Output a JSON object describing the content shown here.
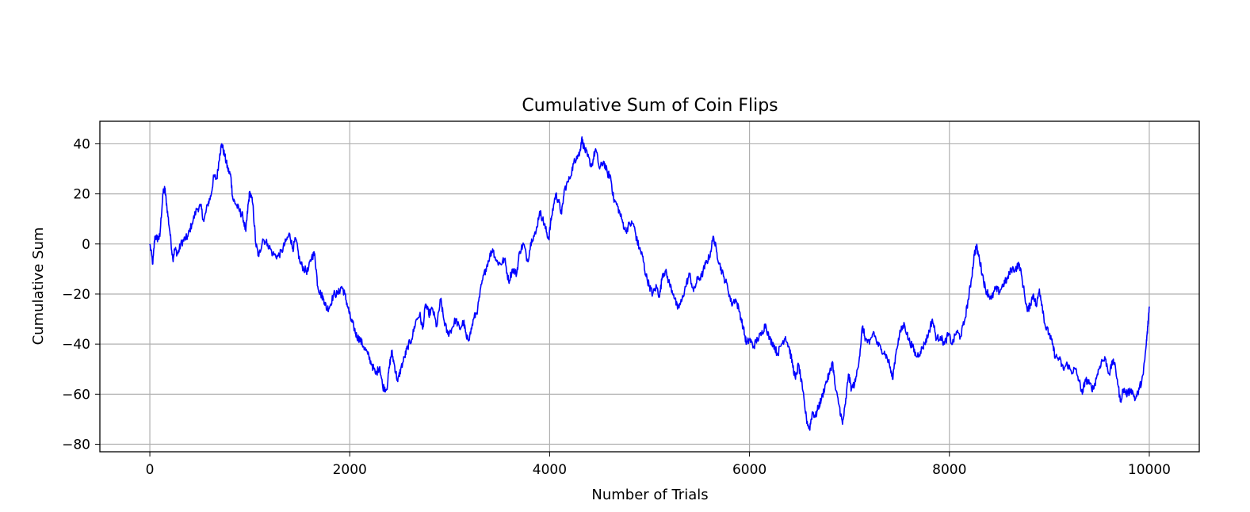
{
  "chart_data": {
    "type": "line",
    "title": "Cumulative Sum of Coin Flips",
    "xlabel": "Number of Trials",
    "ylabel": "Cumulative Sum",
    "xlim": [
      -500,
      10500
    ],
    "ylim": [
      -83,
      49
    ],
    "xticks": [
      0,
      2000,
      4000,
      6000,
      8000,
      10000
    ],
    "yticks": [
      -80,
      -60,
      -40,
      -20,
      0,
      20,
      40
    ],
    "xtick_labels": [
      "0",
      "2000",
      "4000",
      "6000",
      "8000",
      "10000"
    ],
    "ytick_labels": [
      "−80",
      "−60",
      "−40",
      "−20",
      "0",
      "20",
      "40"
    ],
    "grid": true,
    "series": [
      {
        "color": "#0000ff",
        "points": [
          [
            0,
            0
          ],
          [
            30,
            -8
          ],
          [
            50,
            3
          ],
          [
            80,
            2
          ],
          [
            100,
            3
          ],
          [
            130,
            20
          ],
          [
            150,
            22
          ],
          [
            170,
            15
          ],
          [
            200,
            5
          ],
          [
            230,
            -6
          ],
          [
            250,
            -2
          ],
          [
            280,
            -4
          ],
          [
            310,
            0
          ],
          [
            350,
            2
          ],
          [
            380,
            3
          ],
          [
            420,
            8
          ],
          [
            470,
            14
          ],
          [
            510,
            15
          ],
          [
            540,
            9
          ],
          [
            580,
            16
          ],
          [
            610,
            19
          ],
          [
            640,
            27
          ],
          [
            670,
            26
          ],
          [
            700,
            36
          ],
          [
            720,
            40
          ],
          [
            750,
            35
          ],
          [
            780,
            30
          ],
          [
            810,
            27
          ],
          [
            830,
            18
          ],
          [
            860,
            16
          ],
          [
            900,
            13
          ],
          [
            930,
            11
          ],
          [
            960,
            5
          ],
          [
            980,
            14
          ],
          [
            1000,
            21
          ],
          [
            1030,
            16
          ],
          [
            1060,
            0
          ],
          [
            1090,
            -5
          ],
          [
            1130,
            2
          ],
          [
            1180,
            0
          ],
          [
            1230,
            -4
          ],
          [
            1280,
            -5
          ],
          [
            1320,
            -3
          ],
          [
            1360,
            1
          ],
          [
            1400,
            4
          ],
          [
            1430,
            -2
          ],
          [
            1460,
            2
          ],
          [
            1500,
            -7
          ],
          [
            1540,
            -10
          ],
          [
            1580,
            -11
          ],
          [
            1620,
            -5
          ],
          [
            1650,
            -4
          ],
          [
            1680,
            -17
          ],
          [
            1710,
            -20
          ],
          [
            1740,
            -22
          ],
          [
            1770,
            -26
          ],
          [
            1800,
            -25
          ],
          [
            1840,
            -20
          ],
          [
            1880,
            -20
          ],
          [
            1920,
            -17
          ],
          [
            1950,
            -20
          ],
          [
            1980,
            -25
          ],
          [
            2010,
            -30
          ],
          [
            2040,
            -33
          ],
          [
            2070,
            -37
          ],
          [
            2100,
            -38
          ],
          [
            2140,
            -41
          ],
          [
            2180,
            -44
          ],
          [
            2220,
            -48
          ],
          [
            2260,
            -52
          ],
          [
            2300,
            -49
          ],
          [
            2330,
            -57
          ],
          [
            2370,
            -58
          ],
          [
            2400,
            -48
          ],
          [
            2420,
            -43
          ],
          [
            2450,
            -49
          ],
          [
            2480,
            -55
          ],
          [
            2510,
            -50
          ],
          [
            2550,
            -45
          ],
          [
            2580,
            -41
          ],
          [
            2620,
            -38
          ],
          [
            2660,
            -31
          ],
          [
            2700,
            -28
          ],
          [
            2730,
            -34
          ],
          [
            2760,
            -24
          ],
          [
            2790,
            -28
          ],
          [
            2830,
            -26
          ],
          [
            2870,
            -33
          ],
          [
            2910,
            -22
          ],
          [
            2940,
            -30
          ],
          [
            2980,
            -36
          ],
          [
            3020,
            -34
          ],
          [
            3060,
            -30
          ],
          [
            3100,
            -34
          ],
          [
            3140,
            -31
          ],
          [
            3170,
            -38
          ],
          [
            3200,
            -37
          ],
          [
            3240,
            -30
          ],
          [
            3280,
            -26
          ],
          [
            3320,
            -16
          ],
          [
            3360,
            -10
          ],
          [
            3400,
            -5
          ],
          [
            3430,
            -2
          ],
          [
            3470,
            -7
          ],
          [
            3510,
            -8
          ],
          [
            3550,
            -6
          ],
          [
            3590,
            -15
          ],
          [
            3630,
            -10
          ],
          [
            3670,
            -12
          ],
          [
            3700,
            -3
          ],
          [
            3740,
            0
          ],
          [
            3780,
            -7
          ],
          [
            3820,
            2
          ],
          [
            3860,
            4
          ],
          [
            3900,
            13
          ],
          [
            3930,
            10
          ],
          [
            3960,
            6
          ],
          [
            3990,
            2
          ],
          [
            4020,
            11
          ],
          [
            4060,
            20
          ],
          [
            4090,
            17
          ],
          [
            4120,
            12
          ],
          [
            4150,
            22
          ],
          [
            4200,
            26
          ],
          [
            4240,
            32
          ],
          [
            4270,
            35
          ],
          [
            4300,
            36
          ],
          [
            4320,
            42
          ],
          [
            4350,
            38
          ],
          [
            4380,
            35
          ],
          [
            4420,
            31
          ],
          [
            4460,
            38
          ],
          [
            4500,
            30
          ],
          [
            4540,
            33
          ],
          [
            4580,
            28
          ],
          [
            4610,
            27
          ],
          [
            4640,
            18
          ],
          [
            4680,
            15
          ],
          [
            4720,
            10
          ],
          [
            4760,
            5
          ],
          [
            4800,
            8
          ],
          [
            4840,
            8
          ],
          [
            4870,
            2
          ],
          [
            4900,
            -2
          ],
          [
            4930,
            -5
          ],
          [
            4960,
            -12
          ],
          [
            5000,
            -17
          ],
          [
            5030,
            -20
          ],
          [
            5070,
            -17
          ],
          [
            5100,
            -21
          ],
          [
            5130,
            -12
          ],
          [
            5160,
            -11
          ],
          [
            5200,
            -16
          ],
          [
            5240,
            -20
          ],
          [
            5280,
            -26
          ],
          [
            5320,
            -23
          ],
          [
            5360,
            -17
          ],
          [
            5400,
            -12
          ],
          [
            5440,
            -19
          ],
          [
            5480,
            -14
          ],
          [
            5520,
            -13
          ],
          [
            5560,
            -8
          ],
          [
            5600,
            -5
          ],
          [
            5640,
            3
          ],
          [
            5670,
            -3
          ],
          [
            5700,
            -8
          ],
          [
            5740,
            -13
          ],
          [
            5780,
            -17
          ],
          [
            5820,
            -24
          ],
          [
            5860,
            -22
          ],
          [
            5900,
            -27
          ],
          [
            5940,
            -34
          ],
          [
            5970,
            -40
          ],
          [
            6000,
            -38
          ],
          [
            6040,
            -41
          ],
          [
            6080,
            -38
          ],
          [
            6120,
            -36
          ],
          [
            6160,
            -32
          ],
          [
            6200,
            -38
          ],
          [
            6240,
            -40
          ],
          [
            6280,
            -44
          ],
          [
            6320,
            -40
          ],
          [
            6360,
            -37
          ],
          [
            6400,
            -42
          ],
          [
            6430,
            -48
          ],
          [
            6460,
            -54
          ],
          [
            6490,
            -48
          ],
          [
            6530,
            -58
          ],
          [
            6570,
            -70
          ],
          [
            6600,
            -74
          ],
          [
            6630,
            -67
          ],
          [
            6660,
            -69
          ],
          [
            6690,
            -65
          ],
          [
            6720,
            -62
          ],
          [
            6760,
            -56
          ],
          [
            6800,
            -52
          ],
          [
            6830,
            -47
          ],
          [
            6860,
            -58
          ],
          [
            6900,
            -65
          ],
          [
            6930,
            -72
          ],
          [
            6960,
            -64
          ],
          [
            6990,
            -52
          ],
          [
            7020,
            -58
          ],
          [
            7060,
            -55
          ],
          [
            7100,
            -45
          ],
          [
            7130,
            -33
          ],
          [
            7160,
            -38
          ],
          [
            7200,
            -40
          ],
          [
            7240,
            -35
          ],
          [
            7280,
            -40
          ],
          [
            7320,
            -42
          ],
          [
            7360,
            -44
          ],
          [
            7400,
            -48
          ],
          [
            7430,
            -54
          ],
          [
            7470,
            -42
          ],
          [
            7510,
            -35
          ],
          [
            7550,
            -32
          ],
          [
            7590,
            -38
          ],
          [
            7630,
            -41
          ],
          [
            7670,
            -45
          ],
          [
            7710,
            -43
          ],
          [
            7750,
            -40
          ],
          [
            7790,
            -36
          ],
          [
            7830,
            -30
          ],
          [
            7870,
            -38
          ],
          [
            7910,
            -37
          ],
          [
            7950,
            -40
          ],
          [
            7990,
            -36
          ],
          [
            8030,
            -40
          ],
          [
            8070,
            -35
          ],
          [
            8110,
            -37
          ],
          [
            8150,
            -31
          ],
          [
            8190,
            -22
          ],
          [
            8220,
            -14
          ],
          [
            8250,
            -4
          ],
          [
            8270,
            -1
          ],
          [
            8300,
            -6
          ],
          [
            8330,
            -12
          ],
          [
            8360,
            -18
          ],
          [
            8390,
            -20
          ],
          [
            8420,
            -22
          ],
          [
            8460,
            -18
          ],
          [
            8500,
            -19
          ],
          [
            8540,
            -16
          ],
          [
            8580,
            -14
          ],
          [
            8620,
            -10
          ],
          [
            8660,
            -10
          ],
          [
            8700,
            -8
          ],
          [
            8740,
            -17
          ],
          [
            8780,
            -27
          ],
          [
            8810,
            -24
          ],
          [
            8840,
            -20
          ],
          [
            8870,
            -25
          ],
          [
            8900,
            -18
          ],
          [
            8930,
            -25
          ],
          [
            8960,
            -33
          ],
          [
            9000,
            -36
          ],
          [
            9030,
            -40
          ],
          [
            9060,
            -45
          ],
          [
            9100,
            -46
          ],
          [
            9140,
            -50
          ],
          [
            9180,
            -48
          ],
          [
            9220,
            -51
          ],
          [
            9260,
            -50
          ],
          [
            9300,
            -55
          ],
          [
            9330,
            -60
          ],
          [
            9360,
            -54
          ],
          [
            9400,
            -56
          ],
          [
            9440,
            -58
          ],
          [
            9480,
            -52
          ],
          [
            9520,
            -47
          ],
          [
            9560,
            -46
          ],
          [
            9600,
            -52
          ],
          [
            9640,
            -46
          ],
          [
            9680,
            -54
          ],
          [
            9710,
            -63
          ],
          [
            9740,
            -58
          ],
          [
            9780,
            -60
          ],
          [
            9820,
            -58
          ],
          [
            9860,
            -62
          ],
          [
            9900,
            -58
          ],
          [
            9940,
            -52
          ],
          [
            9970,
            -40
          ],
          [
            9985,
            -33
          ],
          [
            10000,
            -25
          ]
        ]
      }
    ]
  }
}
